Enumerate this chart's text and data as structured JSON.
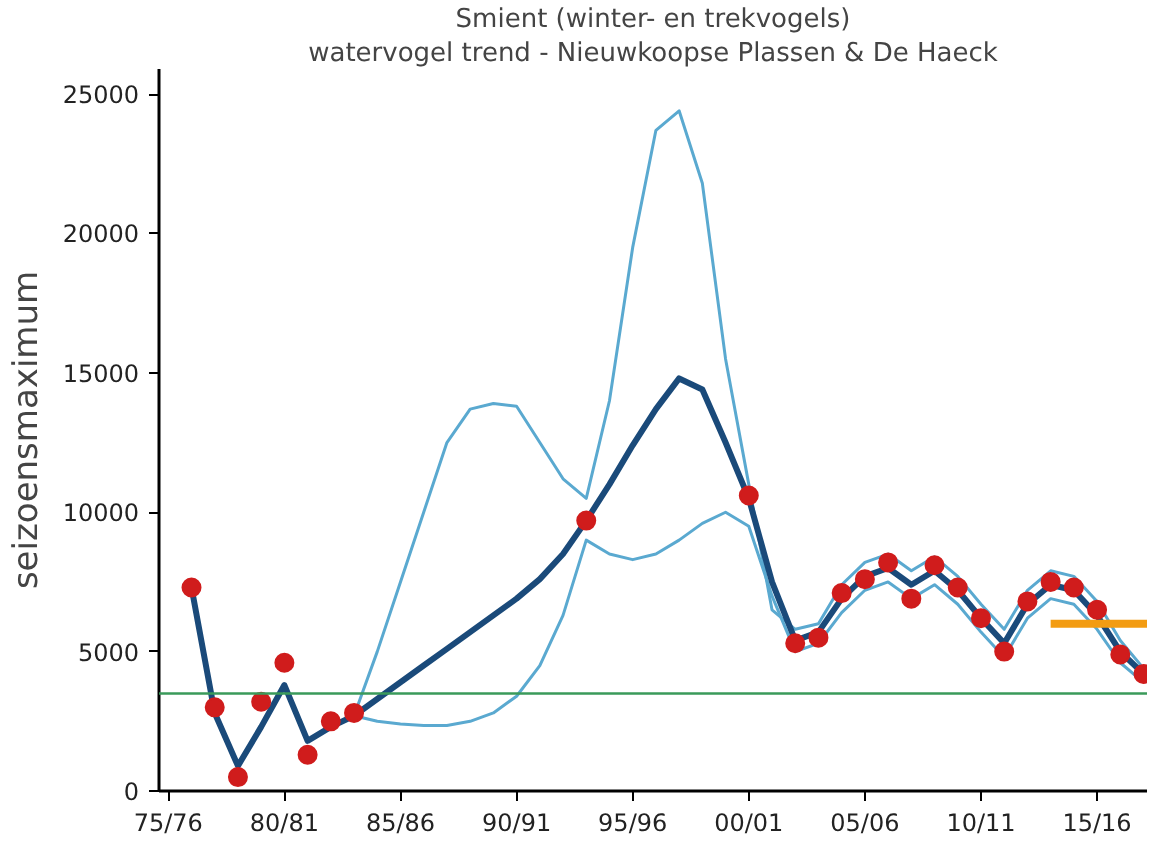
{
  "chart_data": {
    "type": "line",
    "title": "Smient (winter- en trekvogels)",
    "subtitle": "watervogel trend - Nieuwkoopse Plassen & De Haeck",
    "ylabel": "seizoensmaximum",
    "categories": [
      "75/76",
      null,
      null,
      null,
      null,
      "80/81",
      null,
      null,
      null,
      null,
      "85/86",
      null,
      null,
      null,
      null,
      "90/91",
      null,
      null,
      null,
      null,
      "95/96",
      null,
      null,
      null,
      null,
      "00/01",
      null,
      null,
      null,
      null,
      "05/06",
      null,
      null,
      null,
      null,
      "10/11",
      null,
      null,
      null,
      null,
      "15/16",
      null,
      null
    ],
    "ylim": [
      0,
      25900
    ],
    "yticks": [
      0,
      5000,
      10000,
      15000,
      20000,
      25000
    ],
    "grid": false,
    "ref_lines": [
      {
        "axis": "y",
        "value": 3500,
        "color": "#3a9a5a"
      }
    ],
    "series": [
      {
        "color": "#5aa9d0",
        "values": [
          null,
          null,
          null,
          null,
          null,
          null,
          null,
          null,
          2700,
          5000,
          7500,
          10000,
          12500,
          13700,
          13900,
          13800,
          12500,
          11200,
          10500,
          14000,
          19500,
          23700,
          24400,
          21800,
          15500,
          11000,
          6500,
          5800,
          6000,
          7400,
          8200,
          8500,
          7900,
          8400,
          7700,
          6700,
          5800,
          7200,
          7900,
          7700,
          6800,
          5400,
          4400
        ]
      },
      {
        "color": "#5aa9d0",
        "values": [
          null,
          null,
          null,
          null,
          null,
          null,
          null,
          null,
          2700,
          2500,
          2400,
          2350,
          2350,
          2500,
          2800,
          3400,
          4500,
          6300,
          9000,
          8500,
          8300,
          8500,
          9000,
          9600,
          10000,
          9500,
          7000,
          5000,
          5300,
          6400,
          7200,
          7500,
          6900,
          7400,
          6700,
          5700,
          4800,
          6200,
          6900,
          6700,
          5800,
          4600,
          3900
        ]
      },
      {
        "color": "#1a4a7a",
        "values": [
          null,
          7300,
          2800,
          900,
          2300,
          3800,
          1800,
          2300,
          2700,
          3300,
          3900,
          4500,
          5100,
          5700,
          6300,
          6900,
          7600,
          8500,
          9700,
          11000,
          12400,
          13700,
          14800,
          14400,
          12500,
          10500,
          7500,
          5400,
          5700,
          6900,
          7700,
          8000,
          7400,
          7900,
          7200,
          6200,
          5300,
          6700,
          7400,
          7200,
          6300,
          5000,
          4200
        ]
      },
      {
        "color": "#f39c12",
        "values": [
          null,
          null,
          null,
          null,
          null,
          null,
          null,
          null,
          null,
          null,
          null,
          null,
          null,
          null,
          null,
          null,
          null,
          null,
          null,
          null,
          null,
          null,
          null,
          null,
          null,
          null,
          null,
          null,
          null,
          null,
          null,
          null,
          null,
          null,
          null,
          null,
          null,
          null,
          6000,
          6000,
          6000,
          6000,
          6000
        ]
      },
      {
        "type": "scatter",
        "color": "#d01c1c",
        "marker": "circle",
        "values": [
          null,
          7300,
          3000,
          500,
          3200,
          4600,
          1300,
          2500,
          2800,
          null,
          null,
          null,
          null,
          null,
          null,
          null,
          null,
          null,
          9700,
          null,
          null,
          null,
          null,
          null,
          null,
          10600,
          null,
          5300,
          5500,
          7100,
          7600,
          8200,
          6900,
          8100,
          7300,
          6200,
          5000,
          6800,
          7500,
          7300,
          6500,
          4900,
          4200
        ]
      }
    ]
  }
}
